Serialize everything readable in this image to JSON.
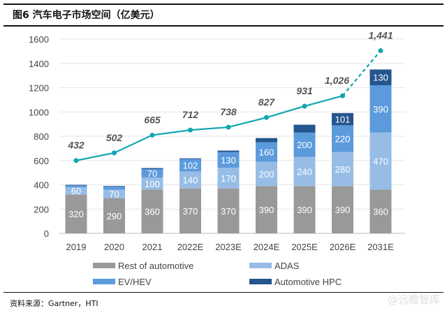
{
  "title": "图6  汽车电子市场空间（亿美元）",
  "source": "资料来源：Gartner，HTI",
  "watermark": "@远瞻智库",
  "chart_data": {
    "type": "bar",
    "stacked": true,
    "categories": [
      "2019",
      "2020",
      "2021",
      "2022E",
      "2023E",
      "2024E",
      "2025E",
      "2026E",
      "2031E"
    ],
    "series": [
      {
        "name": "Rest of automotive",
        "color": "#999999",
        "values": [
          320,
          290,
          360,
          370,
          370,
          390,
          390,
          390,
          360
        ],
        "labels": [
          "320",
          "290",
          "360",
          "370",
          "370",
          "390",
          "390",
          "390",
          "360"
        ]
      },
      {
        "name": "ADAS",
        "color": "#97bde6",
        "values": [
          60,
          70,
          100,
          140,
          170,
          200,
          240,
          280,
          470
        ],
        "labels": [
          "60",
          "70",
          "100",
          "140",
          "170",
          "200",
          "240",
          "280",
          "470"
        ]
      },
      {
        "name": "EV/HEV",
        "color": "#5b9bdc",
        "values": [
          15,
          25,
          70,
          102,
          130,
          160,
          200,
          220,
          390
        ],
        "labels": [
          "",
          "",
          "70",
          "102",
          "130",
          "160",
          "200",
          "220",
          "390"
        ]
      },
      {
        "name": "Automotive HPC",
        "color": "#24558e",
        "values": [
          5,
          5,
          8,
          6,
          12,
          35,
          65,
          101,
          130
        ],
        "labels": [
          "",
          "",
          "",
          "",
          "",
          "",
          "",
          "101",
          "130"
        ]
      }
    ],
    "line": {
      "color": "#11a6b0",
      "values": [
        432,
        502,
        665,
        712,
        738,
        827,
        931,
        1026,
        1441
      ],
      "labels": [
        "432",
        "502",
        "665",
        "712",
        "738",
        "827",
        "931",
        "1,026",
        "1,441"
      ],
      "dashed_last_segment": true
    },
    "yticks": [
      0,
      200,
      400,
      600,
      800,
      1000,
      1200,
      1400,
      1600
    ],
    "ylim": [
      0,
      1600
    ],
    "grid": true,
    "legend": "bottom"
  }
}
